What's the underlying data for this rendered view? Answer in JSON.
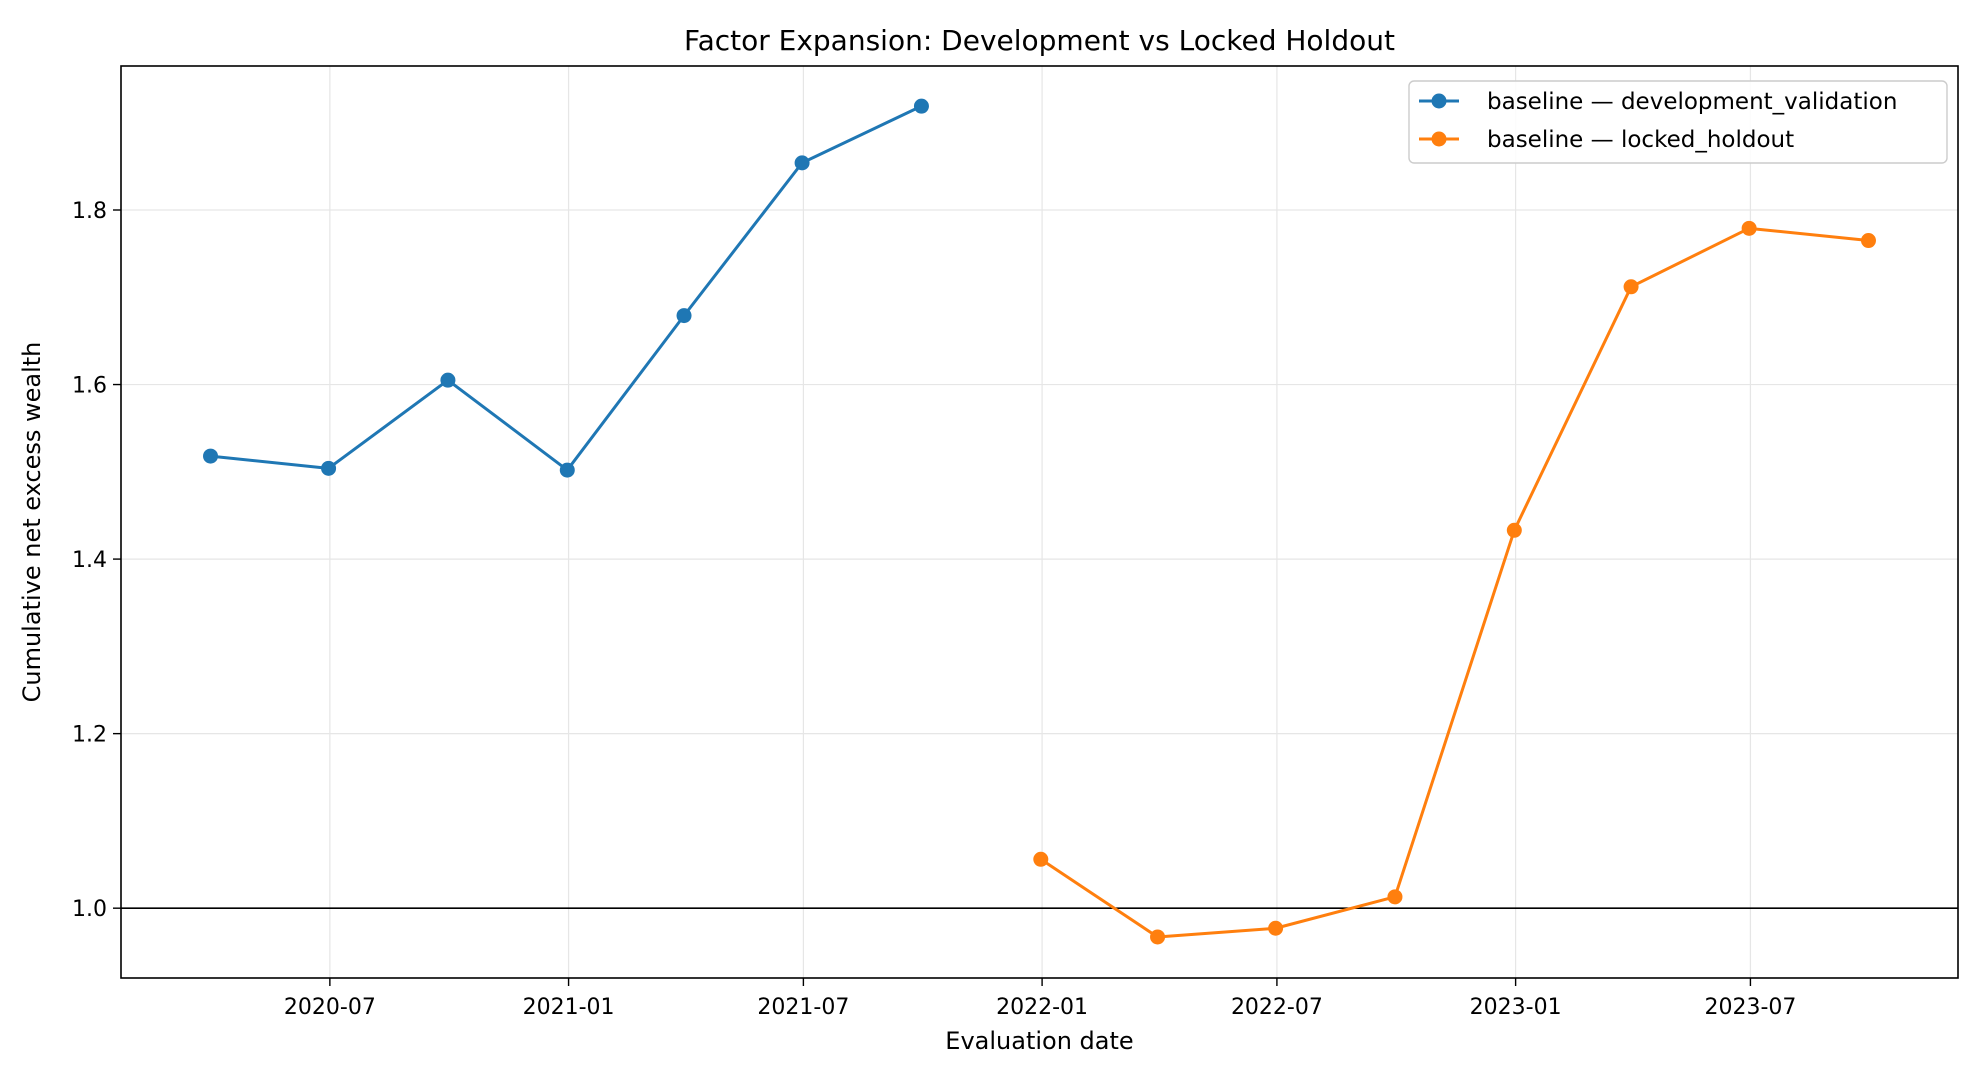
{
  "chart_data": {
    "type": "line",
    "title": "Factor Expansion: Development vs Locked Holdout",
    "xlabel": "Evaluation date",
    "ylabel": "Cumulative net excess wealth",
    "x_tick_labels": [
      "2020-07",
      "2021-01",
      "2021-07",
      "2022-01",
      "2022-07",
      "2023-01",
      "2023-07"
    ],
    "y_tick_labels": [
      "1.0",
      "1.2",
      "1.4",
      "1.6",
      "1.8"
    ],
    "ylim": [
      0.92,
      1.965
    ],
    "xlim": [
      "2020-01-22",
      "2023-12-08"
    ],
    "grid": true,
    "legend_position": "top-right",
    "reference_line": 1.0,
    "series": [
      {
        "name": "baseline — development_validation",
        "color": "#1f77b4",
        "x": [
          "2020-03-31",
          "2020-06-30",
          "2020-09-30",
          "2020-12-31",
          "2021-03-31",
          "2021-06-30",
          "2021-09-30"
        ],
        "y": [
          1.518,
          1.504,
          1.605,
          1.502,
          1.679,
          1.854,
          1.919
        ]
      },
      {
        "name": "baseline — locked_holdout",
        "color": "#ff7f0e",
        "x": [
          "2021-12-31",
          "2022-03-31",
          "2022-06-30",
          "2022-09-30",
          "2022-12-31",
          "2023-03-31",
          "2023-06-30",
          "2023-09-30"
        ],
        "y": [
          1.056,
          0.967,
          0.977,
          1.013,
          1.433,
          1.712,
          1.779,
          1.765
        ]
      }
    ]
  }
}
